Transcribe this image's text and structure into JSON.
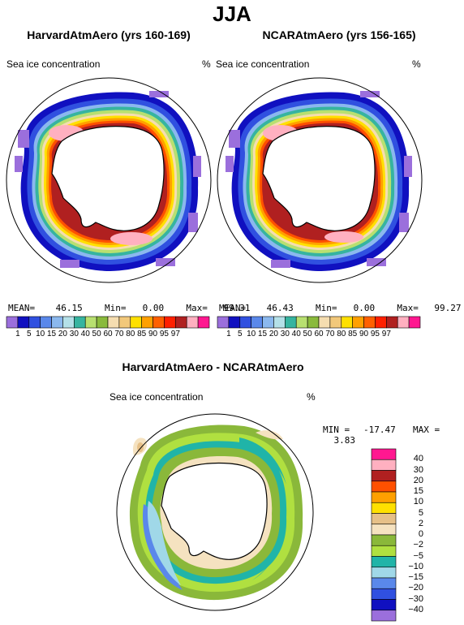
{
  "figure": {
    "season": "JJA",
    "colors": {
      "ice_scale": [
        "#9b6fdc",
        "#1010c0",
        "#3050e0",
        "#5a88ea",
        "#8bb8ee",
        "#b4e0e8",
        "#36b4a0",
        "#b8e070",
        "#8aba3c",
        "#f5ddb0",
        "#f2c87a",
        "#ffe000",
        "#ffa000",
        "#ff6000",
        "#ff2000",
        "#b02020",
        "#ffb0c0",
        "#ff1890"
      ],
      "diff_scale": [
        "#9b6fdc",
        "#1010c0",
        "#3050e0",
        "#5a88ea",
        "#a0d8e8",
        "#20b4a8",
        "#b0e040",
        "#8ab83a",
        "#f5e2c0",
        "#e6c088",
        "#ffe000",
        "#ffa000",
        "#ff5000",
        "#b02020",
        "#ffb0c0",
        "#ff1890"
      ]
    }
  },
  "panels": [
    {
      "title": "HarvardAtmAero (yrs 160-169)",
      "variable": "Sea ice concentration",
      "units": "%",
      "mean_label": "MEAN=",
      "mean": "46.15",
      "min_label": "Min=",
      "min": "0.00",
      "max_label": "Max=",
      "max": "99.31"
    },
    {
      "title": "NCARAtmAero (yrs 156-165)",
      "variable": "Sea ice concentration",
      "units": "%",
      "mean_label": "MEAN=",
      "mean": "46.43",
      "min_label": "Min=",
      "min": "0.00",
      "max_label": "Max=",
      "max": "99.27"
    }
  ],
  "colorbar_ticks": [
    "1",
    "5",
    "10",
    "15",
    "20",
    "30",
    "40",
    "50",
    "60",
    "70",
    "80",
    "85",
    "90",
    "95",
    "97"
  ],
  "difference": {
    "title": "HarvardAtmAero - NCARAtmAero",
    "variable": "Sea ice concentration",
    "units": "%",
    "min_label": "MIN =",
    "min": "-17.47",
    "max_label": "MAX =",
    "max": "3.83",
    "ticks": [
      "40",
      "30",
      "20",
      "15",
      "10",
      "5",
      "2",
      "0",
      "−2",
      "−5",
      "−10",
      "−15",
      "−20",
      "−30",
      "−40"
    ]
  }
}
